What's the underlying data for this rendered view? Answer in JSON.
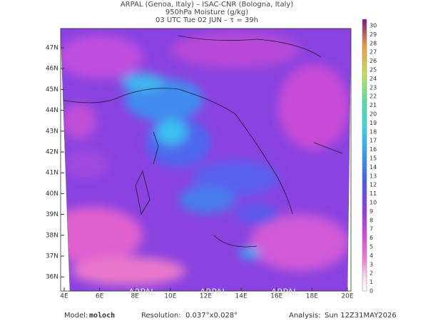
{
  "header": {
    "line1": "ARPAL (Genoa, Italy)  –  ISAC-CNR (Bologna, Italy)",
    "line2": "950hPa Moisture (g/kg)",
    "line3": "03 UTC Tue 02 JUN  –  τ = 39h"
  },
  "map": {
    "lat_labels": [
      "47N",
      "46N",
      "45N",
      "44N",
      "43N",
      "42N",
      "41N",
      "40N",
      "39N",
      "38N",
      "37N",
      "36N"
    ],
    "lon_labels": [
      "4E",
      "6E",
      "8E",
      "10E",
      "12E",
      "14E",
      "16E",
      "18E",
      "20E"
    ],
    "watermark": "ARPAL"
  },
  "colorbar": {
    "labels": [
      30,
      29,
      28,
      27,
      26,
      25,
      24,
      23,
      22,
      21,
      20,
      19,
      18,
      17,
      16,
      15,
      14,
      13,
      12,
      11,
      10,
      9,
      8,
      7,
      6,
      5,
      4,
      3,
      2,
      1,
      0
    ]
  },
  "footer": {
    "model_label": "Model:",
    "model": "moloch",
    "resolution_label": "Resolution:",
    "resolution": "0.037°x0.028°",
    "analysis_label": "Analysis:",
    "analysis": "Sun 12Z31MAY2026"
  }
}
